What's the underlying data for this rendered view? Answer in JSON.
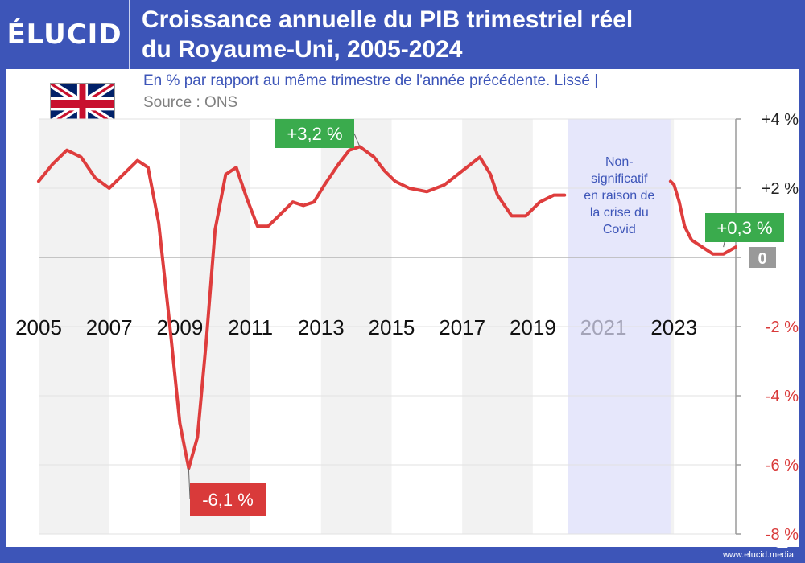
{
  "brand": {
    "logo": "ÉLUCID",
    "website": "www.elucid.media"
  },
  "header": {
    "title_line1": "Croissance annuelle du PIB trimestriel réel",
    "title_line2": "du Royaume-Uni, 2005-2024"
  },
  "subtitle": "En % par rapport au même trimestre de l'année précédente. Lissé  |",
  "source": "Source : ONS",
  "flag": "uk-flag-icon",
  "colors": {
    "header_bg": "#3d55b8",
    "line": "#de3d3d",
    "positive_label": "#3aab4d",
    "negative_label": "#d93a3a",
    "covid_band": "#e6e7fb",
    "zero_label": "#999999",
    "negative_tick": "#d93a3a"
  },
  "chart_data": {
    "type": "line",
    "title": "Croissance annuelle du PIB trimestriel réel du Royaume-Uni, 2005-2024",
    "xlabel": "",
    "ylabel": "",
    "xlim": [
      2005,
      2024.75
    ],
    "ylim": [
      -8,
      4
    ],
    "x_tick_labels": [
      "2005",
      "2007",
      "2009",
      "2011",
      "2013",
      "2015",
      "2017",
      "2019",
      "2021",
      "2023"
    ],
    "y_tick_labels": [
      {
        "value": 4,
        "label": "+4 %"
      },
      {
        "value": 2,
        "label": "+2 %"
      },
      {
        "value": 0,
        "label": "0"
      },
      {
        "value": -2,
        "label": "-2 %"
      },
      {
        "value": -4,
        "label": "-4 %"
      },
      {
        "value": -6,
        "label": "-6 %"
      },
      {
        "value": -8,
        "label": "-8 %"
      }
    ],
    "grid": true,
    "shaded_region": {
      "x_start": 2020.0,
      "x_end": 2022.9,
      "label": "Non-significatif en raison de la crise du Covid"
    },
    "series": [
      {
        "segments": [
          [
            [
              2005.0,
              2.2
            ],
            [
              2005.4,
              2.7
            ],
            [
              2005.8,
              3.1
            ],
            [
              2006.2,
              2.9
            ],
            [
              2006.6,
              2.3
            ],
            [
              2007.0,
              2.0
            ],
            [
              2007.4,
              2.4
            ],
            [
              2007.8,
              2.8
            ],
            [
              2008.1,
              2.6
            ],
            [
              2008.4,
              1.0
            ],
            [
              2008.7,
              -1.8
            ],
            [
              2009.0,
              -4.8
            ],
            [
              2009.25,
              -6.1
            ],
            [
              2009.5,
              -5.2
            ],
            [
              2009.75,
              -2.4
            ],
            [
              2010.0,
              0.8
            ],
            [
              2010.3,
              2.4
            ],
            [
              2010.6,
              2.6
            ],
            [
              2010.9,
              1.7
            ],
            [
              2011.2,
              0.9
            ],
            [
              2011.5,
              0.9
            ],
            [
              2011.8,
              1.2
            ],
            [
              2012.2,
              1.6
            ],
            [
              2012.5,
              1.5
            ],
            [
              2012.8,
              1.6
            ],
            [
              2013.1,
              2.1
            ],
            [
              2013.5,
              2.7
            ],
            [
              2013.8,
              3.1
            ],
            [
              2014.1,
              3.2
            ],
            [
              2014.5,
              2.9
            ],
            [
              2014.8,
              2.5
            ],
            [
              2015.1,
              2.2
            ],
            [
              2015.5,
              2.0
            ],
            [
              2016.0,
              1.9
            ],
            [
              2016.5,
              2.1
            ],
            [
              2017.0,
              2.5
            ],
            [
              2017.5,
              2.9
            ],
            [
              2017.8,
              2.4
            ],
            [
              2018.0,
              1.8
            ],
            [
              2018.4,
              1.2
            ],
            [
              2018.8,
              1.2
            ],
            [
              2019.2,
              1.6
            ],
            [
              2019.6,
              1.8
            ],
            [
              2019.9,
              1.8
            ]
          ],
          [
            [
              2022.9,
              2.2
            ],
            [
              2023.0,
              2.1
            ],
            [
              2023.15,
              1.6
            ],
            [
              2023.3,
              0.9
            ],
            [
              2023.5,
              0.5
            ],
            [
              2023.8,
              0.3
            ],
            [
              2024.1,
              0.1
            ],
            [
              2024.4,
              0.1
            ],
            [
              2024.75,
              0.3
            ]
          ]
        ]
      }
    ],
    "annotations": [
      {
        "label": "+3,2 %",
        "x": 2014.1,
        "y": 3.2,
        "style": "positive"
      },
      {
        "label": "-6,1 %",
        "x": 2009.25,
        "y": -6.1,
        "style": "negative"
      },
      {
        "label": "+0,3 %",
        "x": 2024.4,
        "y": 0.3,
        "style": "positive"
      }
    ]
  }
}
